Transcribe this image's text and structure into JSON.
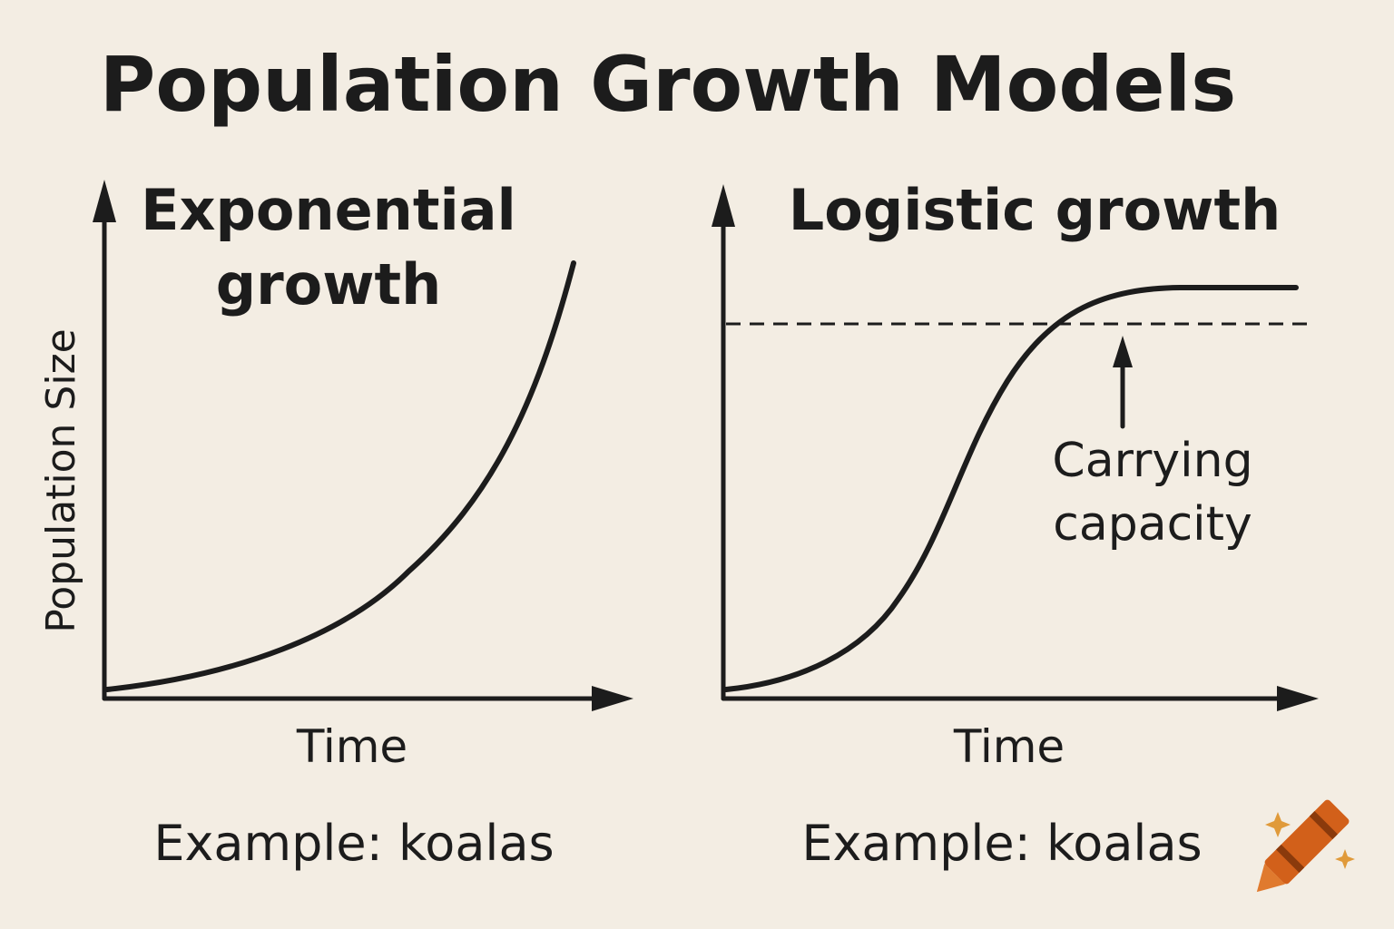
{
  "title": "Population Growth Models",
  "panels": [
    {
      "title_lines": [
        "Exponential",
        "growth"
      ],
      "y_label": "Population Size",
      "x_label": "Time",
      "example": "Example: koalas"
    },
    {
      "title_lines": [
        "Logistic growth"
      ],
      "x_label": "Time",
      "example": "Example: koalas",
      "annotation_lines": [
        "Carrying",
        "capacity"
      ]
    }
  ]
}
